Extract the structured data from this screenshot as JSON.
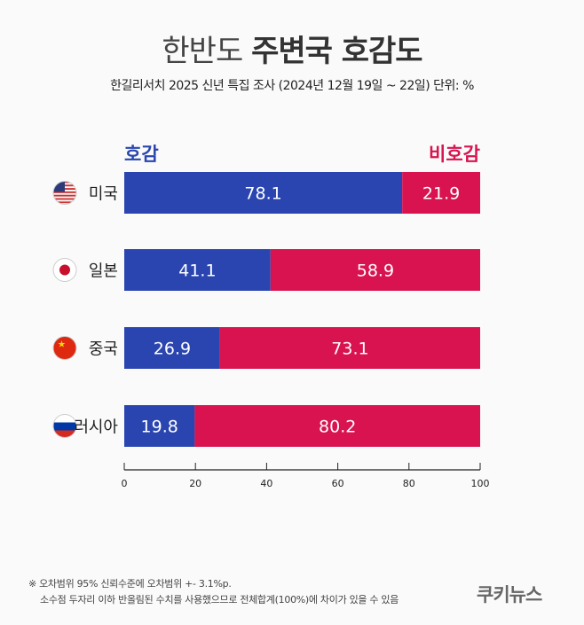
{
  "title": {
    "light": "한반도",
    "bold": "주변국 호감도"
  },
  "subtitle": "한길리서치 2025 신년 특집 조사 (2024년 12월 19일 ~ 22일) 단위: %",
  "chart_data": {
    "type": "bar",
    "stacked": true,
    "orientation": "horizontal",
    "categories": [
      "미국",
      "일본",
      "중국",
      "러시아"
    ],
    "category_icons": [
      "us-flag",
      "japan-flag",
      "china-flag",
      "russia-flag"
    ],
    "series": [
      {
        "name": "호감",
        "color": "#2a45b0",
        "values": [
          78.1,
          41.1,
          26.9,
          19.8
        ]
      },
      {
        "name": "비호감",
        "color": "#d8134f",
        "values": [
          21.9,
          58.9,
          73.1,
          80.2
        ]
      }
    ],
    "xlim": [
      0,
      100
    ],
    "xticks": [
      "0",
      "20",
      "40",
      "60",
      "80",
      "100"
    ],
    "legend": "top",
    "grid": false
  },
  "notes": [
    "※ 오차범위 95% 신뢰수준에 오차범위 +- 3.1%p.",
    "소수점 두자리 이하 반올림된 수치를 사용했으므로 전체합계(100%)에 차이가 있을 수 있음"
  ],
  "logo": "쿠키뉴스"
}
